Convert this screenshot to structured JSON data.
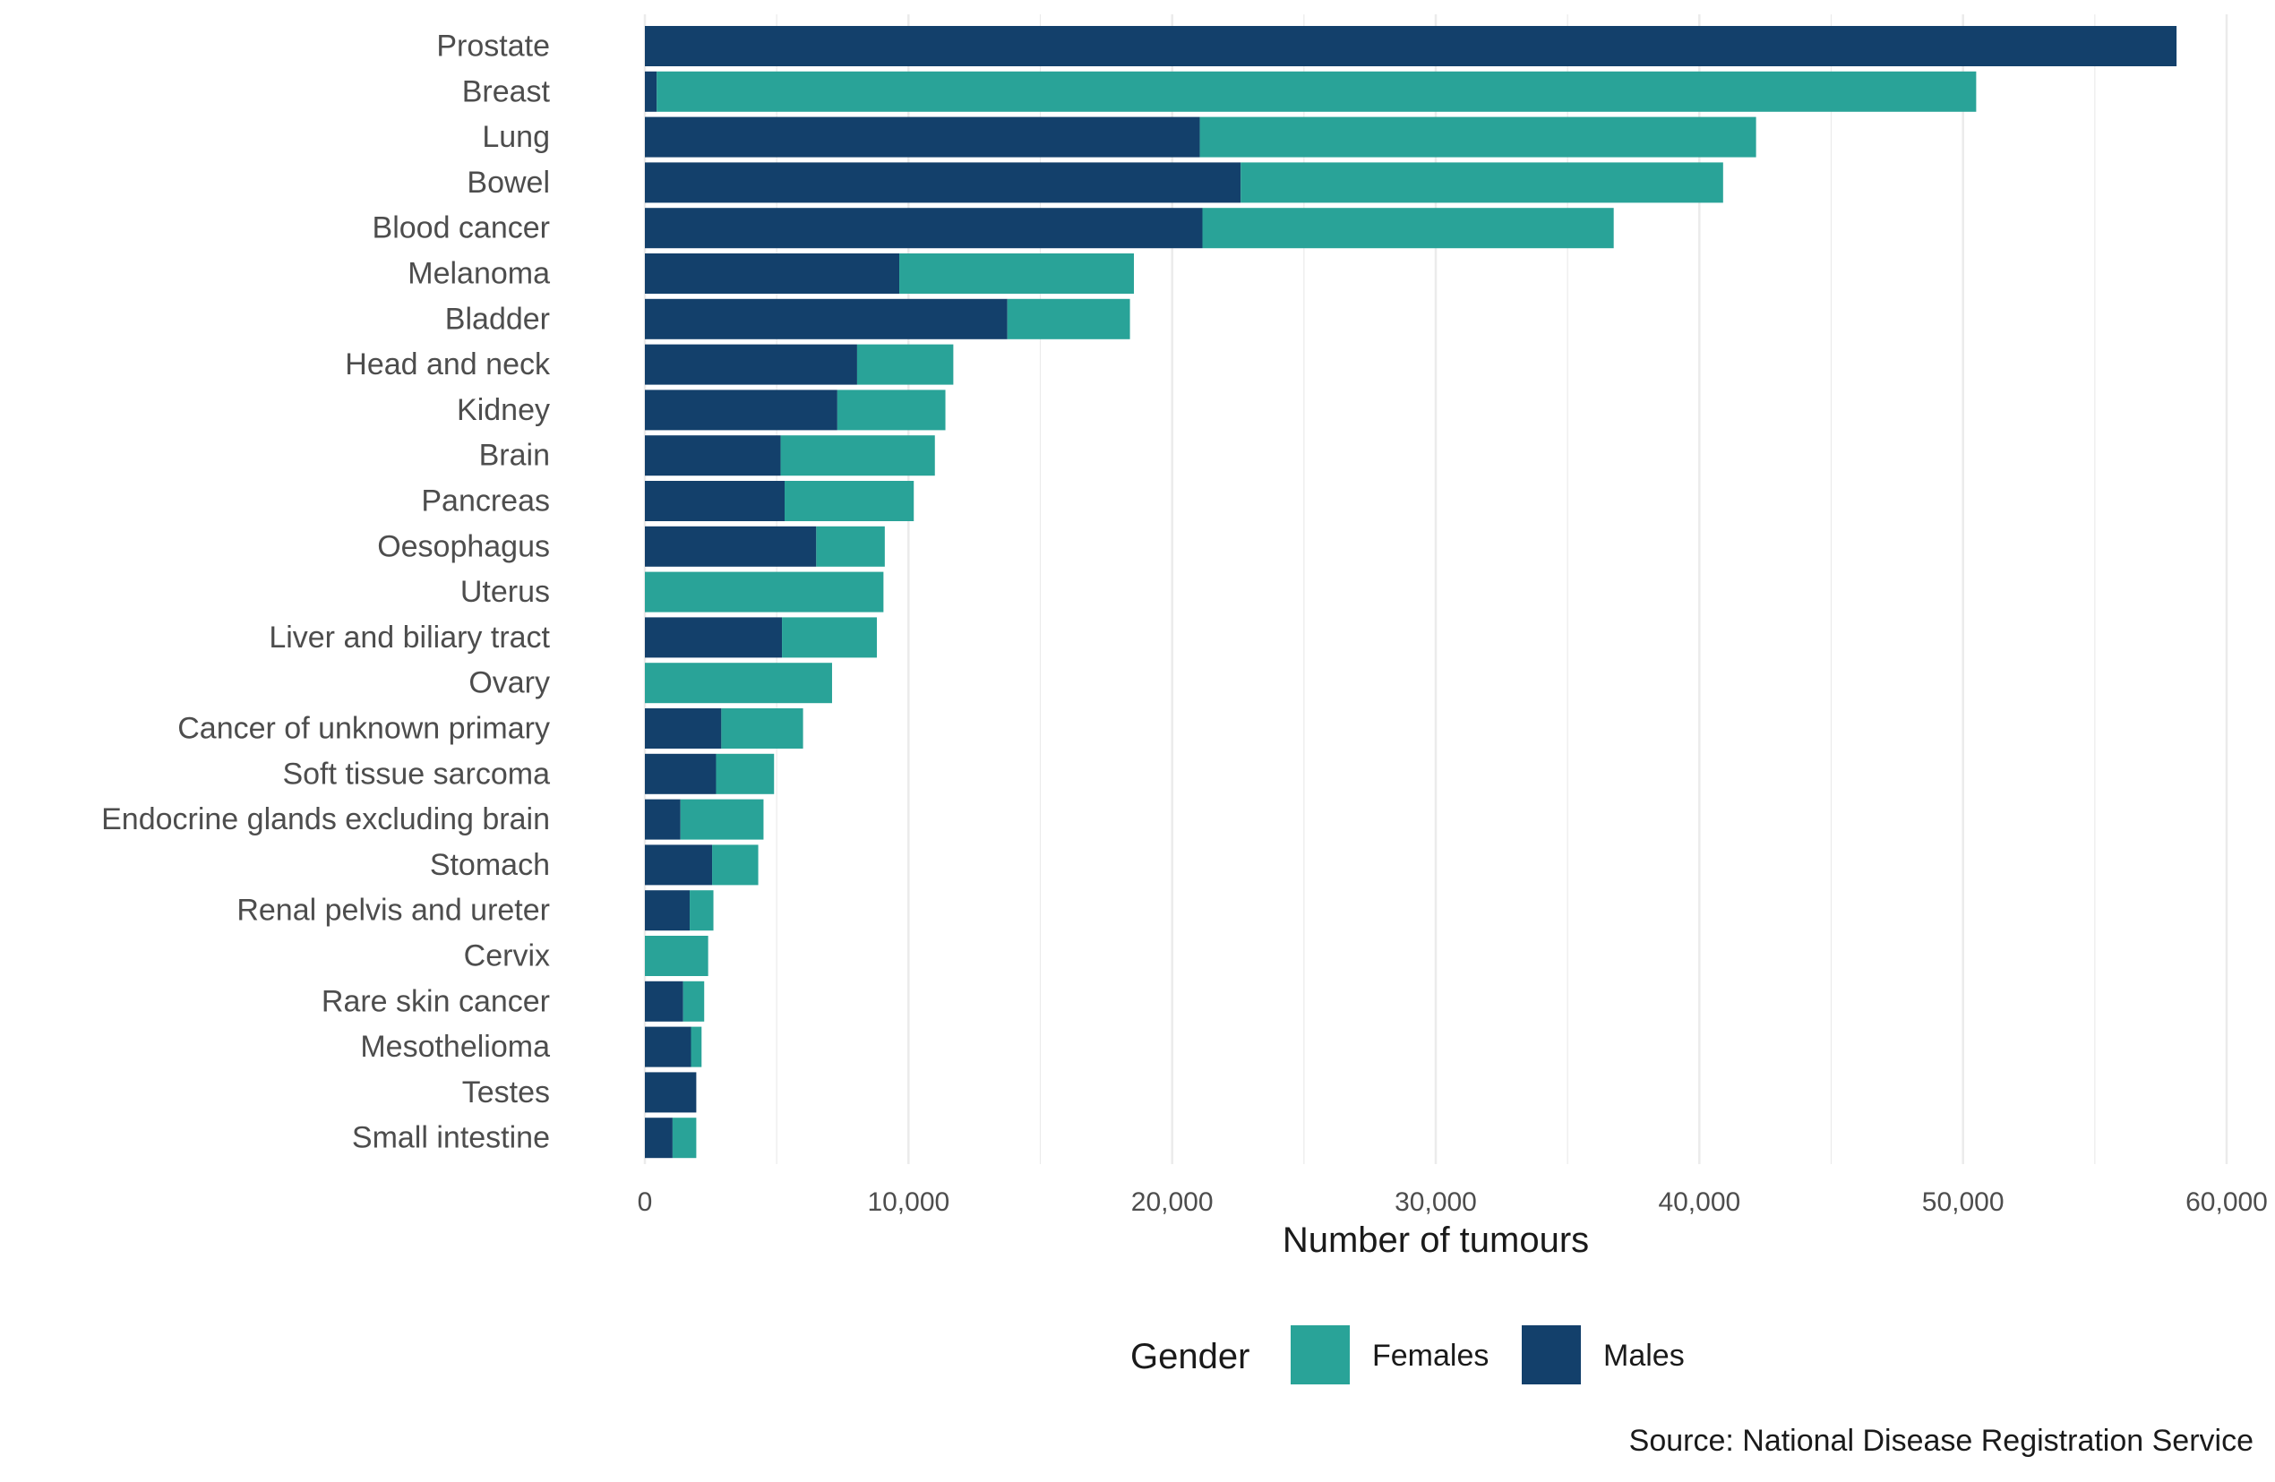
{
  "chart_data": {
    "type": "bar",
    "orientation": "horizontal",
    "stacked": true,
    "categories": [
      "Prostate",
      "Breast",
      "Lung",
      "Bowel",
      "Blood cancer",
      "Melanoma",
      "Bladder",
      "Head and neck",
      "Kidney",
      "Brain",
      "Pancreas",
      "Oesophagus",
      "Uterus",
      "Liver and biliary tract",
      "Ovary",
      "Cancer of unknown primary",
      "Soft tissue sarcoma",
      "Endocrine glands excluding brain",
      "Stomach",
      "Renal pelvis and ureter",
      "Cervix",
      "Rare skin cancer",
      "Mesothelioma",
      "Testes",
      "Small intestine"
    ],
    "series": [
      {
        "name": "Males",
        "color": "#13406b",
        "values": [
          58100,
          450,
          21050,
          22600,
          21150,
          9650,
          13750,
          8050,
          7300,
          5150,
          5300,
          6500,
          0,
          5200,
          0,
          2900,
          2700,
          1350,
          2550,
          1700,
          0,
          1450,
          1750,
          1950,
          1050
        ]
      },
      {
        "name": "Females",
        "color": "#29a398",
        "values": [
          0,
          50050,
          21100,
          18300,
          15600,
          8900,
          4650,
          3650,
          4100,
          5850,
          4900,
          2600,
          9050,
          3600,
          7100,
          3100,
          2200,
          3150,
          1750,
          900,
          2400,
          800,
          400,
          0,
          900
        ]
      }
    ],
    "xlabel": "Number of tumours",
    "ylabel": "",
    "xlim": [
      0,
      60000
    ],
    "x_ticks": [
      0,
      10000,
      20000,
      30000,
      40000,
      50000,
      60000
    ],
    "x_tick_labels": [
      "0",
      "10,000",
      "20,000",
      "30,000",
      "40,000",
      "50,000",
      "60,000"
    ],
    "grid": true,
    "legend": {
      "title": "Gender",
      "position": "bottom",
      "items": [
        {
          "name": "Females",
          "color": "#29a398"
        },
        {
          "name": "Males",
          "color": "#13406b"
        }
      ]
    },
    "caption": "Source: National Disease Registration Service"
  }
}
